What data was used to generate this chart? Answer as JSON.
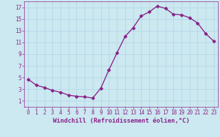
{
  "x": [
    0,
    1,
    2,
    3,
    4,
    5,
    6,
    7,
    8,
    9,
    10,
    11,
    12,
    13,
    14,
    15,
    16,
    17,
    18,
    19,
    20,
    21,
    22,
    23
  ],
  "y": [
    4.7,
    3.7,
    3.3,
    2.8,
    2.5,
    2.0,
    1.8,
    1.7,
    1.5,
    3.2,
    6.3,
    9.2,
    12.0,
    13.5,
    15.5,
    16.2,
    17.2,
    16.8,
    15.8,
    15.7,
    15.2,
    14.3,
    12.5,
    11.2
  ],
  "line_color": "#882288",
  "marker": "D",
  "marker_size": 2.5,
  "bg_color": "#cce8f0",
  "grid_color": "#b0d8e8",
  "xlabel": "Windchill (Refroidissement éolien,°C)",
  "xlim": [
    -0.5,
    23.5
  ],
  "ylim": [
    0,
    18
  ],
  "yticks": [
    1,
    3,
    5,
    7,
    9,
    11,
    13,
    15,
    17
  ],
  "xticks": [
    0,
    1,
    2,
    3,
    4,
    5,
    6,
    7,
    8,
    9,
    10,
    11,
    12,
    13,
    14,
    15,
    16,
    17,
    18,
    19,
    20,
    21,
    22,
    23
  ],
  "tick_color": "#882288",
  "tick_labelsize": 5.5,
  "xlabel_fontsize": 6.5,
  "line_width": 1.0
}
